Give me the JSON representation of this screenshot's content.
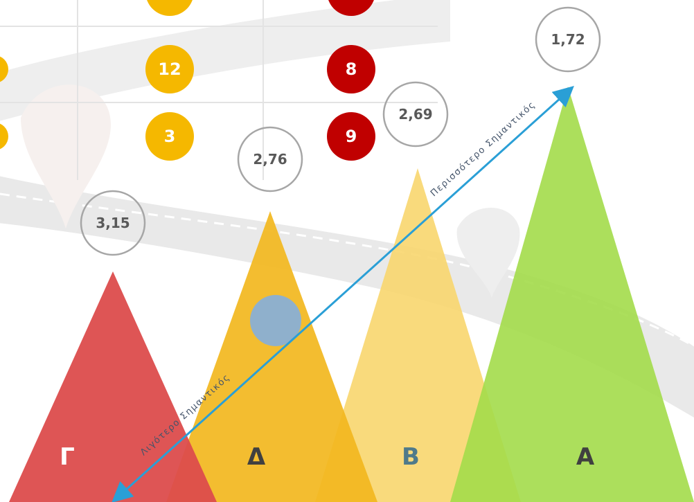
{
  "badges": [
    {
      "label": "12",
      "color": "#f5b800"
    },
    {
      "label": "3",
      "color": "#f5b800"
    },
    {
      "label": "8",
      "color": "#c00000"
    },
    {
      "label": "9",
      "color": "#c00000"
    }
  ],
  "scores": [
    "1,72",
    "2,69",
    "2,76",
    "3,15"
  ],
  "groups": [
    "Γ",
    "Δ",
    "Β",
    "Α"
  ],
  "arrow": {
    "top_label": "Περισσότερο Σημαντικός",
    "bottom_label": "Λιγότερο Σημαντικός"
  }
}
